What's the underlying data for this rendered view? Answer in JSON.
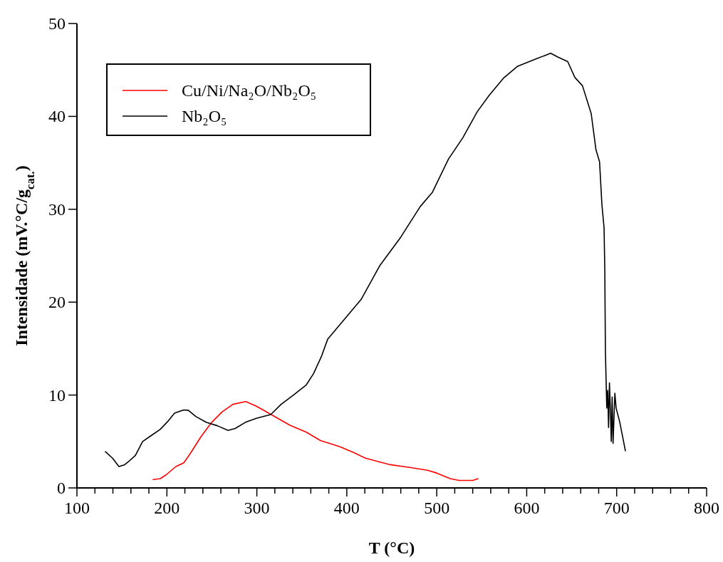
{
  "chart_data": {
    "type": "line",
    "xlabel": "T (°C)",
    "ylabel": "Intensidade (mV.°C/g$_{cat.}$)",
    "xlim": [
      100,
      800
    ],
    "xticks": [
      100,
      {
        "value": 120,
        "label": null
      },
      {
        "value": 140,
        "label": null
      },
      {
        "value": 160,
        "label": null
      },
      {
        "value": 180,
        "label": null
      },
      200,
      {
        "value": 220,
        "label": null
      },
      {
        "value": 240,
        "label": null
      },
      {
        "value": 260,
        "label": null
      },
      {
        "value": 280,
        "label": null
      },
      300,
      {
        "value": 320,
        "label": null
      },
      {
        "value": 340,
        "label": null
      },
      {
        "value": 360,
        "label": null
      },
      {
        "value": 380,
        "label": null
      },
      400,
      {
        "value": 420,
        "label": null
      },
      {
        "value": 440,
        "label": null
      },
      {
        "value": 460,
        "label": null
      },
      {
        "value": 480,
        "label": null
      },
      500,
      {
        "value": 520,
        "label": null
      },
      {
        "value": 540,
        "label": null
      },
      {
        "value": 560,
        "label": null
      },
      {
        "value": 580,
        "label": null
      },
      600,
      {
        "value": 620,
        "label": null
      },
      {
        "value": 640,
        "label": null
      },
      {
        "value": 660,
        "label": null
      },
      {
        "value": 680,
        "label": null
      },
      700,
      {
        "value": 720,
        "label": null
      },
      {
        "value": 740,
        "label": null
      },
      {
        "value": 760,
        "label": null
      },
      {
        "value": 780,
        "label": null
      },
      800
    ],
    "ylim": [
      0,
      50
    ],
    "yticks": [
      0,
      10,
      20,
      30,
      40,
      50
    ],
    "grid": false,
    "legend": "top left",
    "marker": "none",
    "line_style": "solid",
    "series": [
      {
        "name": "Cu/Ni/Na₂O/Nb₂O₅",
        "color": "#ff0000",
        "x": [
          184.7,
          192.6,
          199,
          210,
          218.8,
          226,
          237.8,
          249.7,
          261.5,
          273.4,
          287.7,
          299.5,
          317.7,
          336.8,
          355,
          370.8,
          392,
          408,
          420.7,
          448.4,
          470,
          490,
          500,
          515,
          525,
          540,
          546
        ],
        "values": [
          0.9,
          1.0,
          1.4,
          2.3,
          2.7,
          3.7,
          5.5,
          7.05,
          8.2,
          9.0,
          9.3,
          8.8,
          7.8,
          6.75,
          6.0,
          5.1,
          4.45,
          3.8,
          3.2,
          2.5,
          2.2,
          1.9,
          1.6,
          1.0,
          0.8,
          0.8,
          1.0
        ]
      },
      {
        "name": "Nb₂O₅",
        "color": "#000000",
        "x": [
          131.7,
          139.6,
          146.7,
          153,
          157,
          165,
          173,
          182,
          192.5,
          200.5,
          208.5,
          218.8,
          224,
          232,
          244,
          256,
          268,
          276,
          288,
          299.5,
          315.5,
          327,
          340.7,
          355,
          363,
          372,
          378.7,
          416,
          436.5,
          460,
          481.7,
          495,
          513,
          529,
          545,
          558.5,
          574,
          590,
          610.7,
          626.6,
          634.5,
          645.6,
          653.5,
          662,
          671.7,
          677,
          681,
          683.6,
          686,
          686.8,
          687.5,
          689,
          690,
          691,
          692,
          693,
          694,
          695,
          696,
          698,
          699.4,
          703.4,
          709.7
        ],
        "values": [
          3.9,
          3.2,
          2.3,
          2.5,
          2.8,
          3.5,
          5.0,
          5.6,
          6.3,
          7.1,
          8.05,
          8.4,
          8.35,
          7.7,
          7.05,
          6.7,
          6.2,
          6.4,
          7.1,
          7.5,
          7.9,
          9.0,
          10.0,
          11.1,
          12.3,
          14.2,
          16.0,
          20.3,
          23.9,
          27.0,
          30.3,
          31.8,
          35.4,
          37.7,
          40.5,
          42.3,
          44.1,
          45.4,
          46.2,
          46.8,
          46.4,
          45.9,
          44.2,
          43.3,
          40.3,
          36.4,
          35.1,
          30.5,
          28.0,
          23.6,
          14.7,
          8.6,
          10.5,
          6.5,
          11.3,
          8.5,
          5.0,
          9.8,
          4.8,
          10.2,
          8.6,
          7.1,
          4.0
        ]
      }
    ]
  }
}
